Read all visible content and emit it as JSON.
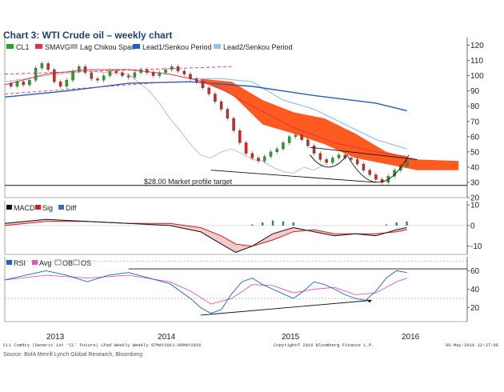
{
  "title": "Chart 3: WTI Crude oil – weekly chart",
  "source": "Source: BofA Merrill Lynch Global Research, Bloomberg",
  "footer": {
    "left": "CL1 Comdty (Generic 1st 'CL' Future) LPad Weekly  Weekly 07MAY2011-06MAY2016",
    "center": "Copyright© 2016 Bloomberg Finance L.P.",
    "right": "06-May-2016 12:37:06"
  },
  "colors": {
    "title": "#1f3f77",
    "up_candle": "#2ca02c",
    "down_candle": "#d62728",
    "smavg": "#e0344a",
    "chikou": "#b0b0b0",
    "lead1": "#1f5fbf",
    "lead2": "#8fc3ea",
    "cloud": "#ff5a1f",
    "macd": "#111111",
    "sig": "#cc2222",
    "diff": "#3a6fb5",
    "rsi": "#1f5fbf",
    "rsi_avg": "#e05ab0"
  },
  "chart_data": [
    {
      "type": "line",
      "panel": "price",
      "legend": [
        "CL1",
        "SMAVG",
        "Lag Chikou Span",
        "Lead1/Senkou Period",
        "Lead2/Senkou Period"
      ],
      "x_ticks": [
        "2013",
        "2014",
        "2015",
        "2016"
      ],
      "y_ticks": [
        120,
        110,
        100,
        90,
        80,
        70,
        60,
        50,
        40,
        30,
        20
      ],
      "ylim": [
        20,
        125
      ],
      "annotation": "$28.00 Market profile target",
      "reference_level": 28,
      "price": [
        [
          0,
          95
        ],
        [
          3,
          93
        ],
        [
          6,
          96
        ],
        [
          9,
          94
        ],
        [
          12,
          97
        ],
        [
          15,
          105
        ],
        [
          18,
          108
        ],
        [
          21,
          104
        ],
        [
          24,
          96
        ],
        [
          27,
          93
        ],
        [
          30,
          97
        ],
        [
          33,
          103
        ],
        [
          36,
          106
        ],
        [
          39,
          102
        ],
        [
          42,
          98
        ],
        [
          45,
          97
        ],
        [
          48,
          100
        ],
        [
          51,
          103
        ],
        [
          54,
          102
        ],
        [
          57,
          100
        ],
        [
          60,
          99
        ],
        [
          63,
          102
        ],
        [
          66,
          104
        ],
        [
          69,
          102
        ],
        [
          72,
          100
        ],
        [
          75,
          102
        ],
        [
          78,
          104
        ],
        [
          81,
          106
        ],
        [
          84,
          103
        ],
        [
          87,
          101
        ],
        [
          90,
          98
        ],
        [
          93,
          96
        ],
        [
          96,
          92
        ],
        [
          99,
          88
        ],
        [
          102,
          83
        ],
        [
          105,
          78
        ],
        [
          108,
          72
        ],
        [
          111,
          64
        ],
        [
          114,
          56
        ],
        [
          117,
          49
        ],
        [
          120,
          46
        ],
        [
          123,
          44
        ],
        [
          126,
          47
        ],
        [
          129,
          50
        ],
        [
          132,
          52
        ],
        [
          135,
          56
        ],
        [
          138,
          60
        ],
        [
          141,
          61
        ],
        [
          144,
          58
        ],
        [
          147,
          54
        ],
        [
          150,
          49
        ],
        [
          153,
          45
        ],
        [
          156,
          43
        ],
        [
          159,
          46
        ],
        [
          162,
          48
        ],
        [
          165,
          46
        ],
        [
          168,
          45
        ],
        [
          171,
          42
        ],
        [
          174,
          38
        ],
        [
          177,
          35
        ],
        [
          180,
          32
        ],
        [
          183,
          30
        ],
        [
          186,
          34
        ],
        [
          189,
          38
        ],
        [
          192,
          41
        ],
        [
          195,
          44
        ]
      ],
      "smavg": [
        [
          0,
          94
        ],
        [
          20,
          101
        ],
        [
          40,
          104
        ],
        [
          60,
          104
        ],
        [
          80,
          101
        ],
        [
          100,
          95
        ],
        [
          120,
          80
        ],
        [
          140,
          66
        ],
        [
          160,
          56
        ],
        [
          180,
          50
        ],
        [
          195,
          47
        ]
      ],
      "chikou": [
        [
          0,
          96
        ],
        [
          20,
          100
        ],
        [
          40,
          103
        ],
        [
          60,
          101
        ],
        [
          70,
          90
        ],
        [
          75,
          82
        ],
        [
          80,
          72
        ],
        [
          85,
          64
        ],
        [
          90,
          55
        ],
        [
          95,
          48
        ],
        [
          100,
          46
        ],
        [
          105,
          50
        ],
        [
          110,
          52
        ],
        [
          115,
          49
        ],
        [
          120,
          45
        ],
        [
          125,
          44
        ],
        [
          130,
          40
        ],
        [
          135,
          37
        ],
        [
          140,
          36
        ],
        [
          145,
          40
        ],
        [
          150,
          38
        ],
        [
          155,
          42
        ]
      ],
      "lead1": [
        [
          0,
          86
        ],
        [
          30,
          90
        ],
        [
          60,
          95
        ],
        [
          90,
          96
        ],
        [
          120,
          93
        ],
        [
          150,
          87
        ],
        [
          180,
          82
        ],
        [
          195,
          77
        ]
      ],
      "lead2": [
        [
          90,
          98
        ],
        [
          105,
          98
        ],
        [
          120,
          96
        ],
        [
          135,
          84
        ],
        [
          150,
          78
        ],
        [
          165,
          68
        ],
        [
          180,
          58
        ],
        [
          195,
          52
        ]
      ],
      "cloud": [
        [
          95,
          98,
          96
        ],
        [
          110,
          96,
          88
        ],
        [
          125,
          84,
          68
        ],
        [
          140,
          76,
          62
        ],
        [
          155,
          72,
          55
        ],
        [
          170,
          62,
          46
        ],
        [
          185,
          50,
          42
        ],
        [
          200,
          45,
          38
        ],
        [
          220,
          44,
          38
        ]
      ]
    },
    {
      "type": "line",
      "panel": "macd",
      "legend": [
        "MACD",
        "Sig",
        "Diff"
      ],
      "y_ticks": [
        10,
        0,
        -10
      ],
      "ylim": [
        -14,
        12
      ],
      "macd": [
        [
          0,
          1
        ],
        [
          20,
          3
        ],
        [
          40,
          2
        ],
        [
          60,
          1
        ],
        [
          80,
          0
        ],
        [
          95,
          -3
        ],
        [
          105,
          -9
        ],
        [
          112,
          -13
        ],
        [
          120,
          -10
        ],
        [
          130,
          -4
        ],
        [
          140,
          -1
        ],
        [
          150,
          -3
        ],
        [
          160,
          -5
        ],
        [
          170,
          -4
        ],
        [
          180,
          -5
        ],
        [
          190,
          -2
        ],
        [
          195,
          -1
        ]
      ],
      "sig": [
        [
          0,
          0
        ],
        [
          20,
          2
        ],
        [
          40,
          2
        ],
        [
          60,
          1
        ],
        [
          80,
          1
        ],
        [
          95,
          -1
        ],
        [
          105,
          -5
        ],
        [
          112,
          -9
        ],
        [
          120,
          -10
        ],
        [
          130,
          -7
        ],
        [
          140,
          -3
        ],
        [
          150,
          -2
        ],
        [
          160,
          -4
        ],
        [
          170,
          -4
        ],
        [
          180,
          -4
        ],
        [
          190,
          -3
        ],
        [
          195,
          -2
        ]
      ],
      "diff": [
        [
          120,
          0.5
        ],
        [
          125,
          1.5
        ],
        [
          130,
          2.5
        ],
        [
          135,
          2
        ],
        [
          140,
          1.5
        ],
        [
          185,
          0.5
        ],
        [
          190,
          1.5
        ],
        [
          195,
          2
        ]
      ]
    },
    {
      "type": "line",
      "panel": "rsi",
      "legend": [
        "RSI",
        "Avg",
        "OB",
        "OS"
      ],
      "y_ticks": [
        60,
        40,
        20
      ],
      "ylim": [
        5,
        75
      ],
      "ob": 70,
      "os": 30,
      "rsi": [
        [
          0,
          50
        ],
        [
          10,
          55
        ],
        [
          20,
          60
        ],
        [
          30,
          55
        ],
        [
          40,
          48
        ],
        [
          50,
          55
        ],
        [
          60,
          58
        ],
        [
          70,
          52
        ],
        [
          80,
          46
        ],
        [
          85,
          38
        ],
        [
          90,
          30
        ],
        [
          95,
          20
        ],
        [
          100,
          14
        ],
        [
          105,
          18
        ],
        [
          110,
          35
        ],
        [
          115,
          48
        ],
        [
          120,
          52
        ],
        [
          125,
          45
        ],
        [
          130,
          40
        ],
        [
          135,
          35
        ],
        [
          140,
          30
        ],
        [
          145,
          38
        ],
        [
          150,
          48
        ],
        [
          155,
          45
        ],
        [
          160,
          40
        ],
        [
          165,
          34
        ],
        [
          170,
          30
        ],
        [
          175,
          28
        ],
        [
          180,
          38
        ],
        [
          185,
          52
        ],
        [
          190,
          60
        ],
        [
          195,
          58
        ]
      ],
      "avg": [
        [
          0,
          50
        ],
        [
          20,
          55
        ],
        [
          40,
          52
        ],
        [
          60,
          55
        ],
        [
          80,
          48
        ],
        [
          90,
          38
        ],
        [
          100,
          24
        ],
        [
          110,
          30
        ],
        [
          120,
          45
        ],
        [
          130,
          44
        ],
        [
          140,
          36
        ],
        [
          150,
          40
        ],
        [
          160,
          42
        ],
        [
          170,
          34
        ],
        [
          180,
          36
        ],
        [
          190,
          48
        ],
        [
          195,
          52
        ]
      ]
    }
  ]
}
